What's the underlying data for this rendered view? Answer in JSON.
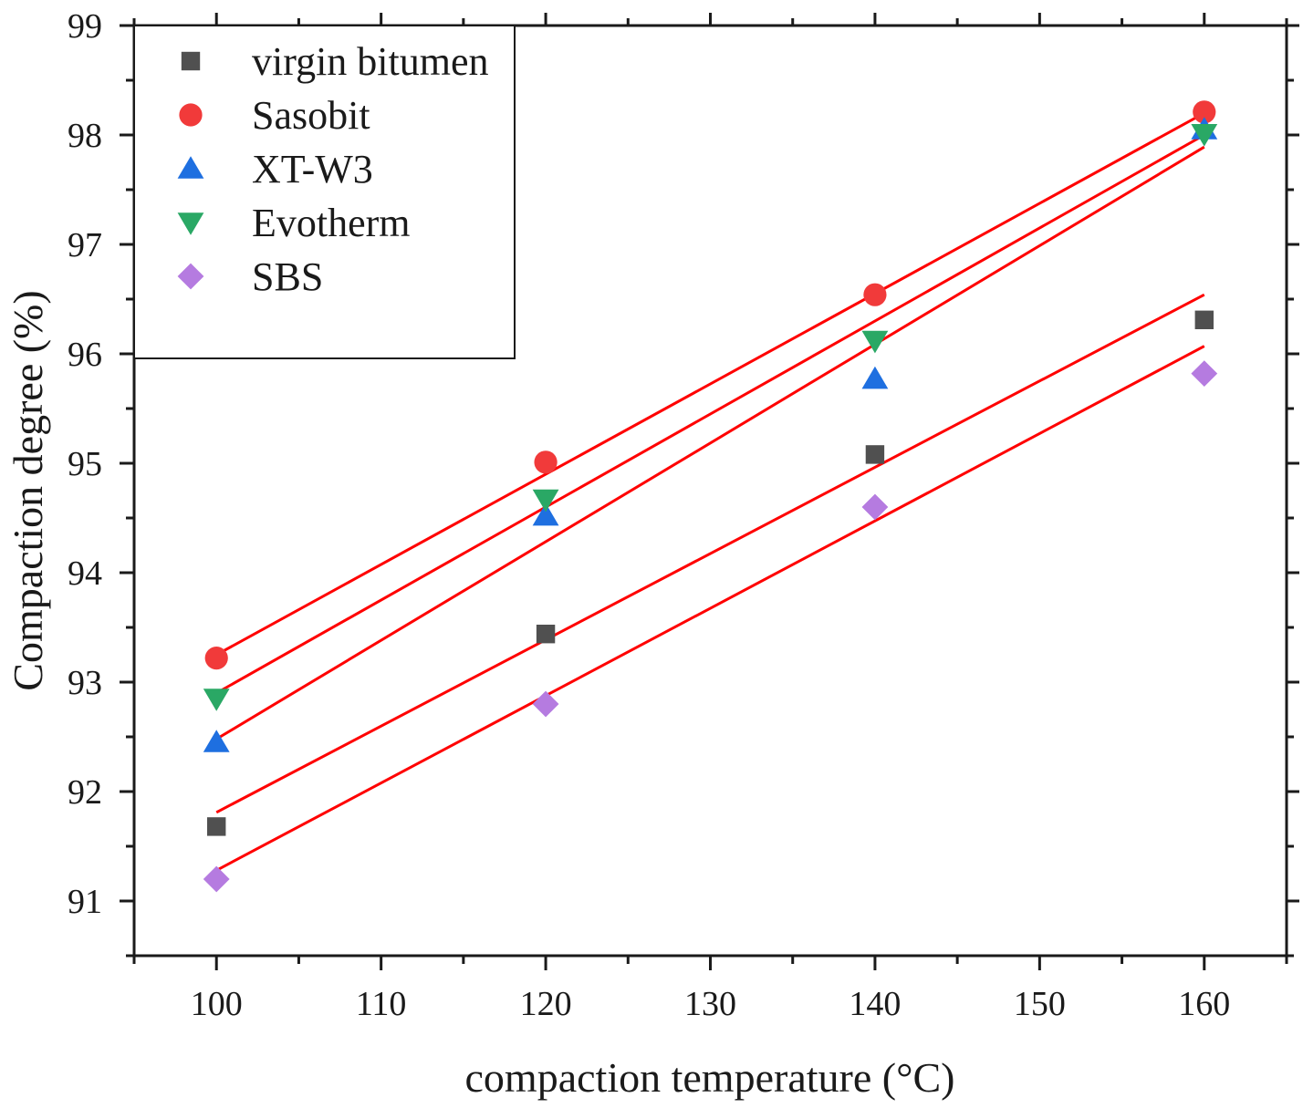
{
  "chart_data": {
    "type": "scatter",
    "title": "",
    "xlabel": "compaction temperature (°C)",
    "ylabel": "Compaction degree (%)",
    "xlim": [
      95,
      165
    ],
    "ylim": [
      90.5,
      99
    ],
    "x_ticks": [
      100,
      110,
      120,
      130,
      140,
      150,
      160
    ],
    "y_ticks": [
      91,
      92,
      93,
      94,
      95,
      96,
      97,
      98,
      99
    ],
    "grid": false,
    "legend_position": "top-left",
    "fit_color": "#ff0000",
    "series": [
      {
        "name": "virgin bitumen",
        "marker": "square",
        "color": "#505050",
        "x": [
          100,
          120,
          140,
          160
        ],
        "y": [
          91.68,
          93.44,
          95.08,
          96.31
        ],
        "fit": {
          "x": [
            100,
            160
          ],
          "y": [
            91.81,
            96.54
          ]
        }
      },
      {
        "name": "Sasobit",
        "marker": "circle",
        "color": "#f13a3a",
        "x": [
          100,
          120,
          140,
          160
        ],
        "y": [
          93.22,
          95.01,
          96.54,
          98.21
        ],
        "fit": {
          "x": [
            100,
            160
          ],
          "y": [
            93.25,
            98.2
          ]
        }
      },
      {
        "name": "XT-W3",
        "marker": "triangle-up",
        "color": "#1e6fe0",
        "x": [
          100,
          120,
          140,
          160
        ],
        "y": [
          92.45,
          94.52,
          95.77,
          98.05
        ],
        "fit": {
          "x": [
            100,
            160
          ],
          "y": [
            92.48,
            97.89
          ]
        }
      },
      {
        "name": "Evotherm",
        "marker": "triangle-down",
        "color": "#2aa865",
        "x": [
          100,
          120,
          140,
          160
        ],
        "y": [
          92.85,
          94.67,
          96.12,
          98.01
        ],
        "fit": {
          "x": [
            100,
            160
          ],
          "y": [
            92.9,
            98.0
          ]
        }
      },
      {
        "name": "SBS",
        "marker": "diamond",
        "color": "#b57be0",
        "x": [
          100,
          120,
          140,
          160
        ],
        "y": [
          91.2,
          92.8,
          94.6,
          95.82
        ],
        "fit": {
          "x": [
            100,
            160
          ],
          "y": [
            91.28,
            96.07
          ]
        }
      }
    ]
  }
}
